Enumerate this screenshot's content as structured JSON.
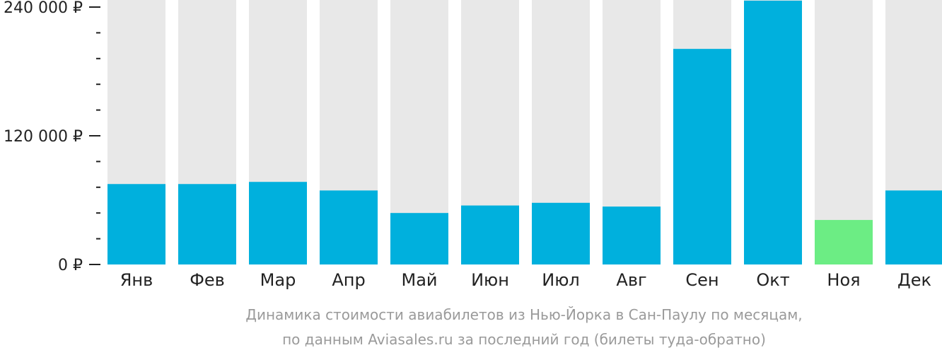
{
  "colors": {
    "bar": "#00b0dd",
    "bar_highlight": "#6ced84",
    "track": "#e8e8e8",
    "axis": "#222222",
    "caption": "#9a9a9a"
  },
  "chart_data": {
    "type": "bar",
    "categories": [
      "Янв",
      "Фев",
      "Мар",
      "Апр",
      "Май",
      "Июн",
      "Июл",
      "Авг",
      "Сен",
      "Окт",
      "Ноя",
      "Дек"
    ],
    "values": [
      75000,
      75000,
      77000,
      69000,
      48000,
      55000,
      57500,
      54000,
      201000,
      246000,
      41500,
      69000
    ],
    "highlight_index": 10,
    "ylim": [
      0,
      250000
    ],
    "y_ticks": [
      {
        "value": 0,
        "label": "0 ₽"
      },
      {
        "value": 120000,
        "label": "120 000 ₽"
      },
      {
        "value": 240000,
        "label": "240 000 ₽"
      }
    ],
    "minor_tick_step": 24000,
    "grid": false,
    "legend": "none",
    "caption_lines": [
      "Динамика стоимости авиабилетов из Нью-Йорка в Сан-Паулу по месяцам,",
      "по данным Aviasales.ru за последний год (билеты туда-обратно)"
    ]
  }
}
